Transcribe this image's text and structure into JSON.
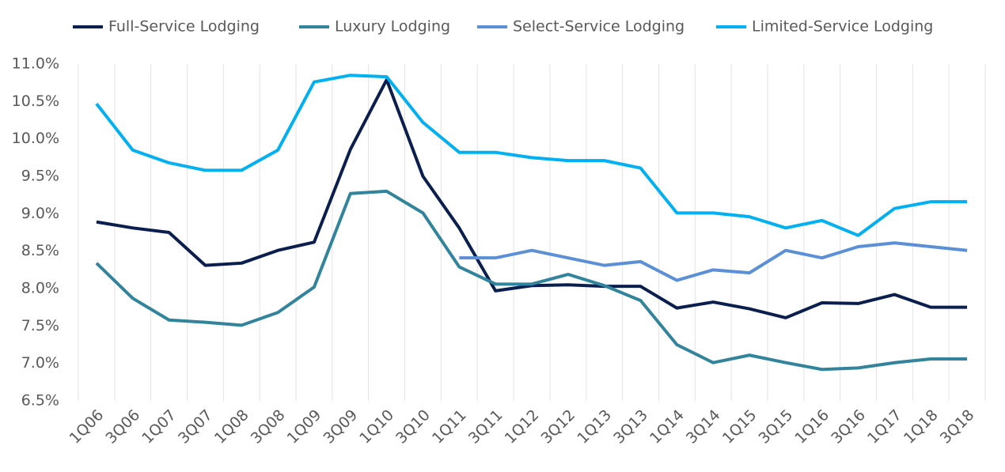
{
  "chart_data": {
    "type": "line",
    "categories": [
      "1Q06",
      "3Q06",
      "1Q07",
      "3Q07",
      "1Q08",
      "3Q08",
      "1Q09",
      "3Q09",
      "1Q10",
      "3Q10",
      "1Q11",
      "3Q11",
      "1Q12",
      "3Q12",
      "1Q13",
      "3Q13",
      "1Q14",
      "3Q14",
      "1Q15",
      "3Q15",
      "1Q16",
      "3Q16",
      "1Q17",
      "1Q18",
      "3Q18"
    ],
    "series": [
      {
        "name": "Full-Service Lodging",
        "color": "#0b1f4f",
        "values": [
          8.89,
          8.81,
          8.75,
          8.31,
          8.34,
          8.51,
          8.62,
          9.86,
          10.79,
          9.5,
          8.81,
          7.97,
          8.04,
          8.05,
          8.03,
          8.03,
          7.74,
          7.82,
          7.73,
          7.61,
          7.81,
          7.8,
          7.92,
          7.75,
          7.75
        ]
      },
      {
        "name": "Luxury Lodging",
        "color": "#31849b",
        "values": [
          8.34,
          7.87,
          7.58,
          7.55,
          7.51,
          7.68,
          8.02,
          9.27,
          9.3,
          9.01,
          8.29,
          8.06,
          8.06,
          8.19,
          8.04,
          7.84,
          7.25,
          7.01,
          7.11,
          7.01,
          6.92,
          6.94,
          7.01,
          7.06,
          7.06
        ]
      },
      {
        "name": "Select-Service Lodging",
        "color": "#5b8fd6",
        "values": [
          null,
          null,
          null,
          null,
          null,
          null,
          null,
          null,
          null,
          null,
          8.41,
          8.41,
          8.51,
          8.41,
          8.31,
          8.36,
          8.11,
          8.25,
          8.21,
          8.51,
          8.41,
          8.56,
          8.61,
          8.56,
          8.51
        ]
      },
      {
        "name": "Limited-Service Lodging",
        "color": "#00b0f0",
        "values": [
          10.47,
          9.85,
          9.68,
          9.58,
          9.58,
          9.85,
          10.76,
          10.85,
          10.83,
          10.22,
          9.82,
          9.82,
          9.75,
          9.71,
          9.71,
          9.61,
          9.01,
          9.01,
          8.96,
          8.81,
          8.91,
          8.71,
          9.07,
          9.16,
          9.16
        ]
      }
    ],
    "ylim": [
      6.5,
      11
    ],
    "yticks": [
      {
        "value": 6.5,
        "label": "6.5%"
      },
      {
        "value": 7,
        "label": "7.0%"
      },
      {
        "value": 7.5,
        "label": "7.5%"
      },
      {
        "value": 8,
        "label": "8.0%"
      },
      {
        "value": 8.5,
        "label": "8.5%"
      },
      {
        "value": 9,
        "label": "9.0%"
      },
      {
        "value": 9.5,
        "label": "9.5%"
      },
      {
        "value": 10,
        "label": "10.0%"
      },
      {
        "value": 10.5,
        "label": "10.5%"
      },
      {
        "value": 11,
        "label": "11.0%"
      }
    ],
    "grid": true,
    "legend": "top"
  }
}
